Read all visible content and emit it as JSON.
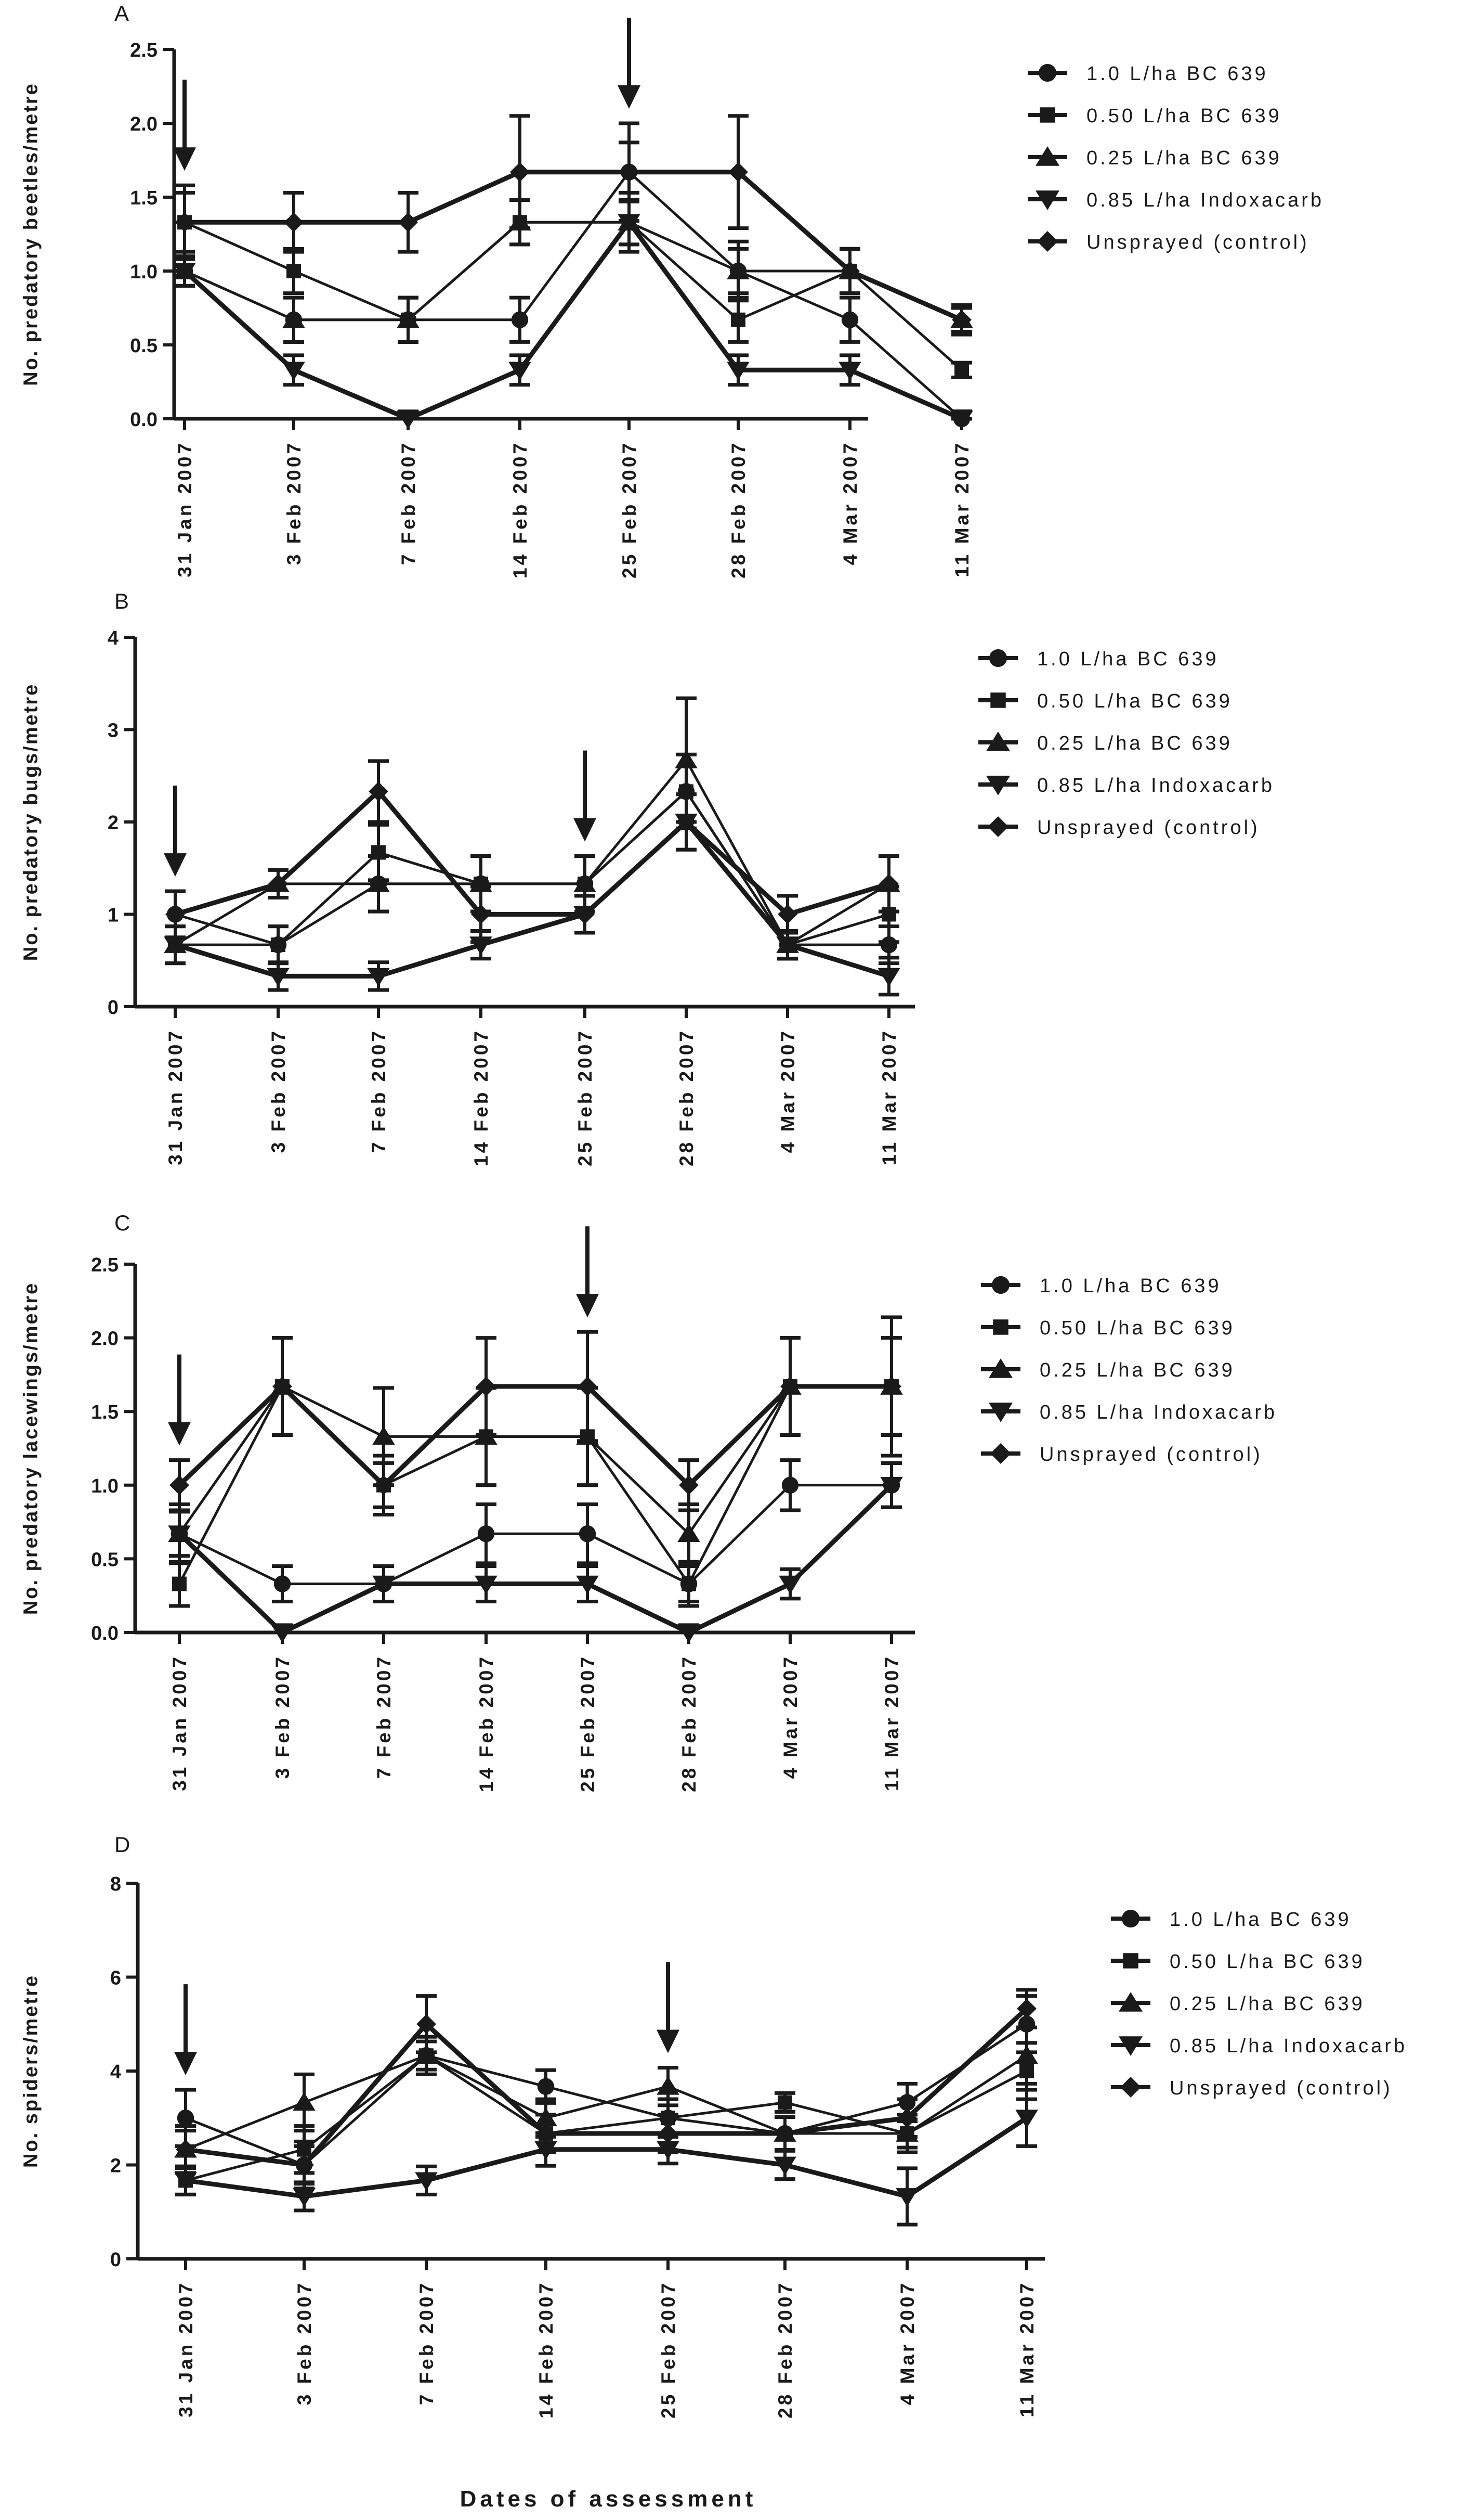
{
  "figure": {
    "xlabel": "Dates of assessment"
  },
  "legend_labels": [
    "1.0 L/ha BC 639",
    "0.50 L/ha BC 639",
    "0.25 L/ha BC 639",
    "0.85 L/ha Indoxacarb",
    "Unsprayed (control)"
  ],
  "chart_data": [
    {
      "type": "line",
      "panel_label": "A",
      "ylabel": "No. predatory beetles/metre",
      "ylim": [
        0,
        2.5
      ],
      "yticks": [
        "0.0",
        "0.5",
        "1.0",
        "1.5",
        "2.0",
        "2.5"
      ],
      "categories": [
        "31 Jan 2007",
        "3 Feb 2007",
        "7 Feb 2007",
        "14 Feb 2007",
        "25 Feb 2007",
        "28 Feb 2007",
        "4 Mar 2007",
        "11 Mar 2007"
      ],
      "arrows_at": [
        "31 Jan 2007",
        "25 Feb 2007"
      ],
      "series": [
        {
          "name": "1.0 L/ha BC 639",
          "marker": "circle",
          "values": [
            1.0,
            0.67,
            0.67,
            0.67,
            1.67,
            1.0,
            0.67,
            0.0
          ],
          "errors": [
            0.1,
            0.15,
            0.15,
            0.15,
            0.2,
            0.15,
            0.15,
            0.05
          ]
        },
        {
          "name": "0.50 L/ha BC 639",
          "marker": "square",
          "values": [
            1.33,
            1.0,
            0.67,
            1.33,
            1.33,
            0.67,
            1.0,
            0.33
          ],
          "errors": [
            0.2,
            0.15,
            0.15,
            0.15,
            0.2,
            0.15,
            0.15,
            0.05
          ]
        },
        {
          "name": "0.25 L/ha BC 639",
          "marker": "triangle",
          "values": [
            1.0,
            0.67,
            0.67,
            1.33,
            1.33,
            1.0,
            1.0,
            0.67
          ],
          "errors": [
            0.1,
            0.15,
            0.15,
            0.15,
            0.15,
            0.2,
            0.15,
            0.1
          ]
        },
        {
          "name": "0.85 L/ha Indoxacarb",
          "marker": "triangle-down",
          "values": [
            1.0,
            0.33,
            0.0,
            0.33,
            1.33,
            0.33,
            0.33,
            0.0
          ],
          "errors": [
            0.1,
            0.1,
            0.05,
            0.1,
            0.15,
            0.1,
            0.1,
            0.05
          ]
        },
        {
          "name": "Unsprayed (control)",
          "marker": "diamond",
          "values": [
            1.33,
            1.33,
            1.33,
            1.67,
            1.67,
            1.67,
            1.0,
            0.67
          ],
          "errors": [
            0.25,
            0.2,
            0.2,
            0.38,
            0.33,
            0.38,
            0.15,
            0.08
          ]
        }
      ]
    },
    {
      "type": "line",
      "panel_label": "B",
      "ylabel": "No. predatory bugs/metre",
      "ylim": [
        0,
        4
      ],
      "yticks": [
        "0",
        "1",
        "2",
        "3",
        "4"
      ],
      "categories": [
        "31 Jan 2007",
        "3 Feb 2007",
        "7 Feb 2007",
        "14 Feb 2007",
        "25 Feb 2007",
        "28 Feb 2007",
        "4 Mar 2007",
        "11 Mar 2007"
      ],
      "arrows_at": [
        "31 Jan 2007",
        "25 Feb 2007"
      ],
      "series": [
        {
          "name": "1.0 L/ha BC 639",
          "marker": "circle",
          "values": [
            1.0,
            0.67,
            1.33,
            1.33,
            1.33,
            2.33,
            0.67,
            0.67
          ],
          "errors": [
            0.25,
            0.2,
            0.3,
            0.3,
            0.3,
            0.4,
            0.15,
            0.2
          ]
        },
        {
          "name": "0.50 L/ha BC 639",
          "marker": "square",
          "values": [
            0.67,
            0.67,
            1.67,
            1.33,
            1.33,
            2.33,
            0.67,
            1.0
          ],
          "errors": [
            0.2,
            0.2,
            0.3,
            0.3,
            0.3,
            0.4,
            0.15,
            0.3
          ]
        },
        {
          "name": "0.25 L/ha BC 639",
          "marker": "triangle",
          "values": [
            0.67,
            1.33,
            1.33,
            1.33,
            1.33,
            2.67,
            0.67,
            1.33
          ],
          "errors": [
            0.2,
            0.15,
            0.3,
            0.3,
            0.3,
            0.67,
            0.15,
            0.3
          ]
        },
        {
          "name": "0.85 L/ha Indoxacarb",
          "marker": "triangle-down",
          "values": [
            0.67,
            0.33,
            0.33,
            0.67,
            1.0,
            2.0,
            0.67,
            0.33
          ],
          "errors": [
            0.2,
            0.15,
            0.15,
            0.15,
            0.2,
            0.3,
            0.15,
            0.2
          ]
        },
        {
          "name": "Unsprayed (control)",
          "marker": "diamond",
          "values": [
            1.0,
            1.33,
            2.33,
            1.0,
            1.0,
            2.0,
            1.0,
            1.33
          ],
          "errors": [
            0.25,
            0.15,
            0.33,
            0.3,
            0.2,
            0.3,
            0.2,
            0.3
          ]
        }
      ]
    },
    {
      "type": "line",
      "panel_label": "C",
      "ylabel": "No. predatory lacewings/metre",
      "ylim": [
        0,
        2.5
      ],
      "yticks": [
        "0.0",
        "0.5",
        "1.0",
        "1.5",
        "2.0",
        "2.5"
      ],
      "categories": [
        "31 Jan 2007",
        "3 Feb 2007",
        "7 Feb 2007",
        "14 Feb 2007",
        "25 Feb 2007",
        "28 Feb 2007",
        "4 Mar 2007",
        "11 Mar 2007"
      ],
      "arrows_at": [
        "31 Jan 2007",
        "25 Feb 2007"
      ],
      "series": [
        {
          "name": "1.0 L/ha BC 639",
          "marker": "circle",
          "values": [
            0.67,
            0.33,
            0.33,
            0.67,
            0.67,
            0.33,
            1.0,
            1.0
          ],
          "errors": [
            0.15,
            0.12,
            0.12,
            0.2,
            0.2,
            0.12,
            0.17,
            0.15
          ]
        },
        {
          "name": "0.50 L/ha BC 639",
          "marker": "square",
          "values": [
            0.33,
            1.67,
            1.0,
            1.33,
            1.33,
            0.33,
            1.67,
            1.67
          ],
          "errors": [
            0.15,
            0.33,
            0.15,
            0.33,
            0.33,
            0.15,
            0.33,
            0.47
          ]
        },
        {
          "name": "0.25 L/ha BC 639",
          "marker": "triangle",
          "values": [
            0.67,
            1.67,
            1.33,
            1.33,
            1.33,
            0.67,
            1.67,
            1.67
          ],
          "errors": [
            0.2,
            0.33,
            0.33,
            0.33,
            0.33,
            0.2,
            0.33,
            0.33
          ]
        },
        {
          "name": "0.85 L/ha Indoxacarb",
          "marker": "triangle-down",
          "values": [
            0.67,
            0.0,
            0.33,
            0.33,
            0.33,
            0.0,
            0.33,
            1.0
          ],
          "errors": [
            0.15,
            0.05,
            0.12,
            0.12,
            0.12,
            0.05,
            0.1,
            0.15
          ]
        },
        {
          "name": "Unsprayed (control)",
          "marker": "diamond",
          "values": [
            1.0,
            1.67,
            1.0,
            1.67,
            1.67,
            1.0,
            1.67,
            1.67
          ],
          "errors": [
            0.17,
            0.33,
            0.2,
            0.33,
            0.37,
            0.17,
            0.33,
            0.33
          ]
        }
      ]
    },
    {
      "type": "line",
      "panel_label": "D",
      "ylabel": "No. spiders/metre",
      "ylim": [
        0,
        8
      ],
      "yticks": [
        "0",
        "2",
        "4",
        "6",
        "8"
      ],
      "categories": [
        "31 Jan 2007",
        "3 Feb 2007",
        "7 Feb 2007",
        "14 Feb 2007",
        "25 Feb 2007",
        "28 Feb 2007",
        "4 Mar 2007",
        "11 Mar 2007"
      ],
      "arrows_at": [
        "31 Jan 2007",
        "25 Feb 2007"
      ],
      "series": [
        {
          "name": "1.0 L/ha BC 639",
          "marker": "circle",
          "values": [
            3.0,
            2.0,
            4.33,
            3.67,
            3.0,
            2.67,
            3.33,
            5.0
          ],
          "errors": [
            0.6,
            0.5,
            0.4,
            0.35,
            0.4,
            0.35,
            0.4,
            0.6
          ]
        },
        {
          "name": "0.50 L/ha BC 639",
          "marker": "square",
          "values": [
            1.67,
            2.33,
            4.33,
            2.67,
            3.0,
            3.33,
            2.67,
            4.0
          ],
          "errors": [
            0.3,
            0.5,
            0.3,
            0.4,
            0.4,
            0.2,
            0.4,
            0.6
          ]
        },
        {
          "name": "0.25 L/ha BC 639",
          "marker": "triangle",
          "values": [
            2.33,
            3.33,
            4.33,
            3.0,
            3.67,
            2.67,
            2.67,
            4.33
          ],
          "errors": [
            0.4,
            0.6,
            0.4,
            0.4,
            0.4,
            0.35,
            0.3,
            0.6
          ]
        },
        {
          "name": "0.85 L/ha Indoxacarb",
          "marker": "triangle-down",
          "values": [
            1.67,
            1.33,
            1.67,
            2.33,
            2.33,
            2.0,
            1.33,
            3.0
          ],
          "errors": [
            0.3,
            0.3,
            0.3,
            0.35,
            0.3,
            0.3,
            0.6,
            0.6
          ]
        },
        {
          "name": "Unsprayed (control)",
          "marker": "diamond",
          "values": [
            2.33,
            2.0,
            5.0,
            2.67,
            2.67,
            2.67,
            3.0,
            5.33
          ],
          "errors": [
            0.5,
            0.4,
            0.6,
            0.4,
            0.4,
            0.35,
            0.4,
            0.4
          ]
        }
      ]
    }
  ]
}
